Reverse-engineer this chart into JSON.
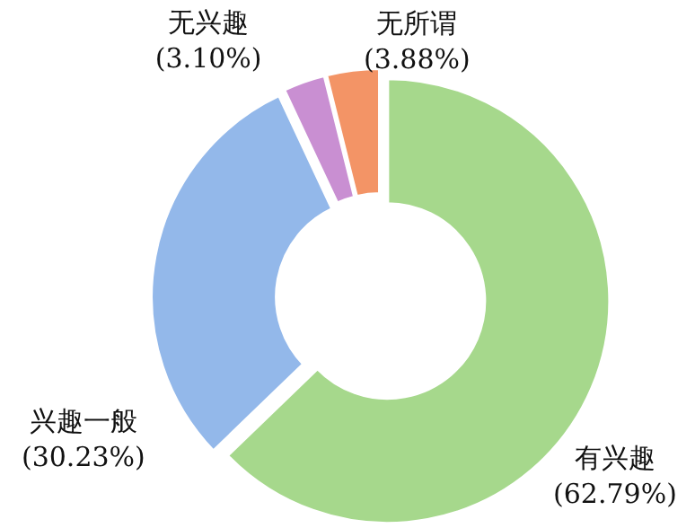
{
  "chart_data": {
    "type": "donut",
    "categories": [
      "有兴趣",
      "兴趣一般",
      "无兴趣",
      "无所谓"
    ],
    "values": [
      62.79,
      30.23,
      3.1,
      3.88
    ],
    "colors": [
      "#a6d88c",
      "#93b8ea",
      "#c98fd2",
      "#f39466"
    ],
    "value_labels": [
      "(62.79%)",
      "(30.23%)",
      "(3.10%)",
      "(3.88%)"
    ]
  }
}
